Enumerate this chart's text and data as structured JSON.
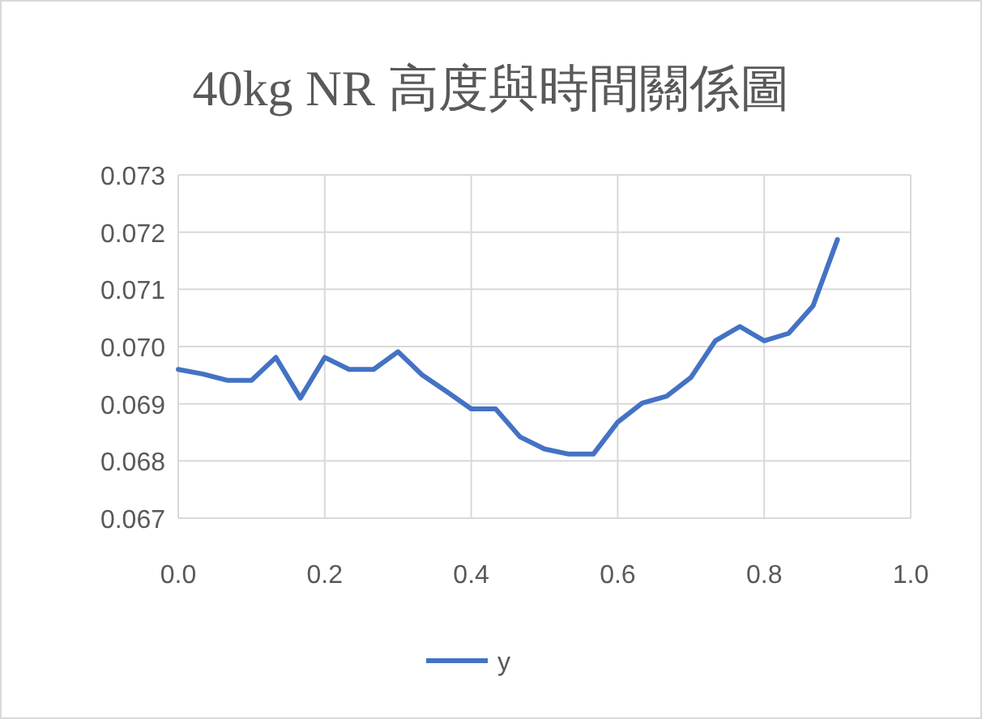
{
  "chart_data": {
    "type": "line",
    "title": "40kg NR 高度與時間關係圖",
    "x": [
      0,
      0.0333,
      0.0667,
      0.1,
      0.1333,
      0.1667,
      0.2,
      0.2333,
      0.2667,
      0.3,
      0.3333,
      0.3667,
      0.4,
      0.4333,
      0.4667,
      0.5,
      0.5333,
      0.5667,
      0.6,
      0.6333,
      0.6667,
      0.7,
      0.7333,
      0.7667,
      0.8,
      0.8333,
      0.8667,
      0.9
    ],
    "series": [
      {
        "name": "y",
        "color": "#4472c4",
        "values": [
          0.0696,
          0.06952,
          0.06941,
          0.06941,
          0.06981,
          0.0691,
          0.06981,
          0.0696,
          0.0696,
          0.06991,
          0.0695,
          0.06921,
          0.06891,
          0.06891,
          0.06842,
          0.06821,
          0.06812,
          0.06812,
          0.06868,
          0.06901,
          0.06913,
          0.06946,
          0.0701,
          0.07035,
          0.0701,
          0.07023,
          0.07071,
          0.07187
        ]
      }
    ],
    "xlim": [
      0,
      1
    ],
    "xticks": [
      {
        "value": 0,
        "label": "0.0"
      },
      {
        "value": 0.2,
        "label": "0.2"
      },
      {
        "value": 0.4,
        "label": "0.4"
      },
      {
        "value": 0.6,
        "label": "0.6"
      },
      {
        "value": 0.8,
        "label": "0.8"
      },
      {
        "value": 1,
        "label": "1.0"
      }
    ],
    "ylim": [
      0.067,
      0.073
    ],
    "yticks": [
      {
        "value": 0.067,
        "label": "0.067"
      },
      {
        "value": 0.068,
        "label": "0.068"
      },
      {
        "value": 0.069,
        "label": "0.069"
      },
      {
        "value": 0.07,
        "label": "0.070"
      },
      {
        "value": 0.071,
        "label": "0.071"
      },
      {
        "value": 0.072,
        "label": "0.072"
      },
      {
        "value": 0.073,
        "label": "0.073"
      }
    ],
    "grid": true,
    "legend": "bottom",
    "marker": "none",
    "line_style": "solid"
  }
}
